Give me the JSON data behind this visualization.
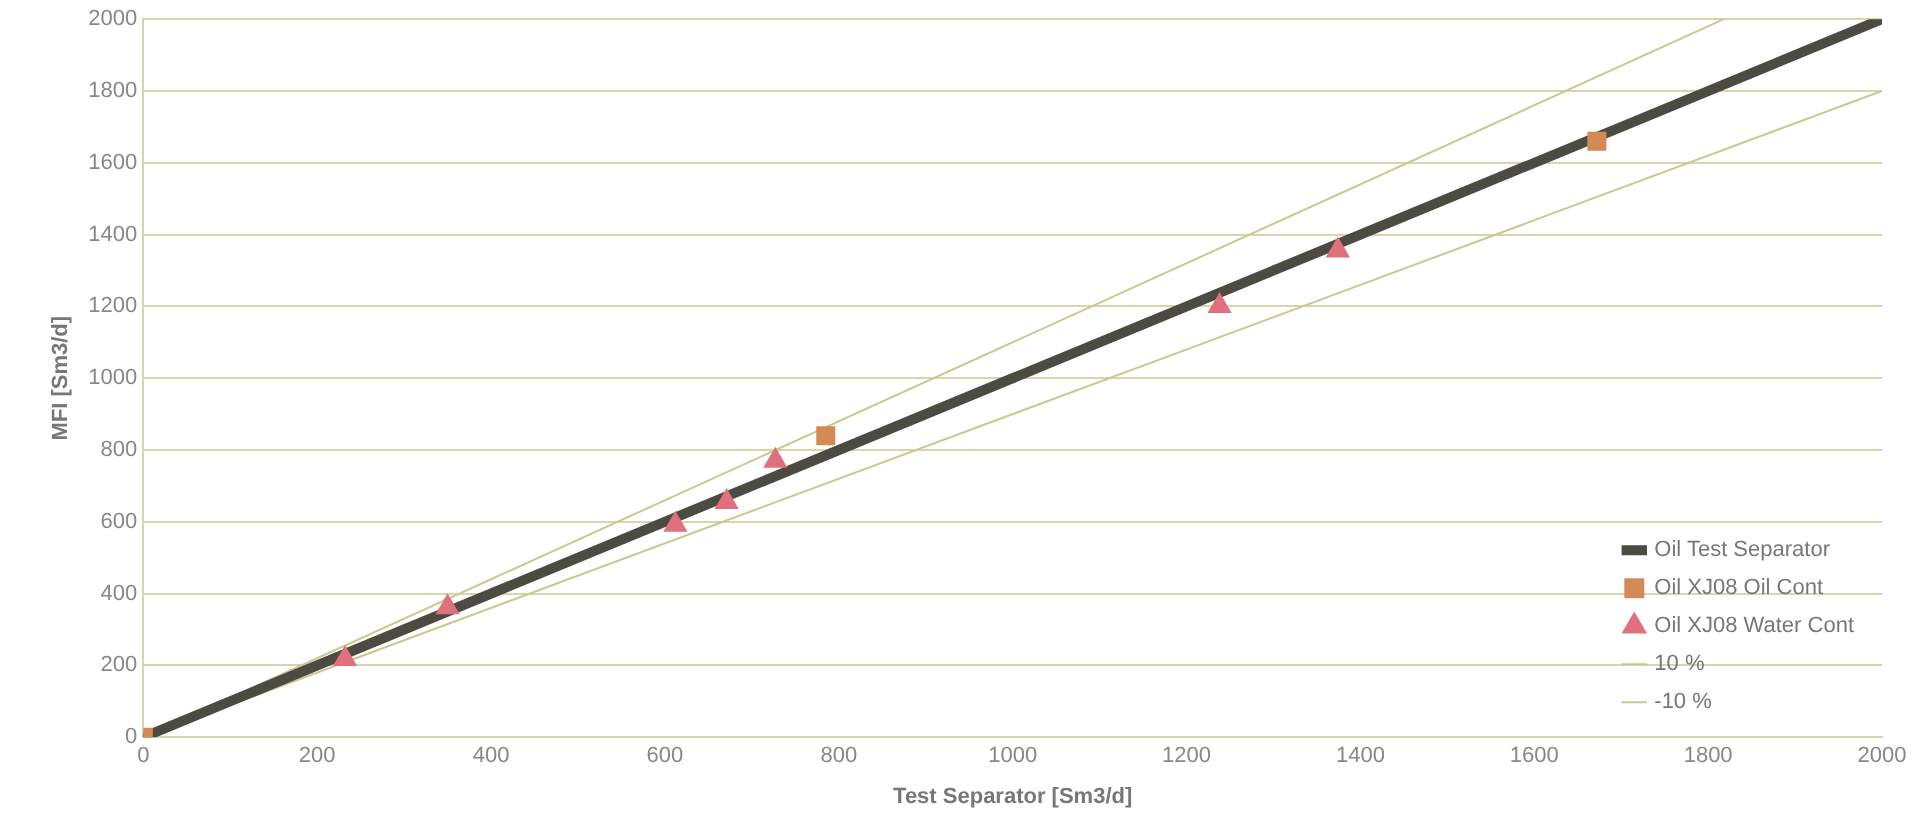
{
  "chart_data": {
    "type": "scatter",
    "xlabel": "Test Separator [Sm3/d]",
    "ylabel": "MFI [Sm3/d]",
    "xlim": [
      0,
      2000
    ],
    "ylim": [
      0,
      2000
    ],
    "xticks": [
      0,
      200,
      400,
      600,
      800,
      1000,
      1200,
      1400,
      1600,
      1800,
      2000
    ],
    "yticks": [
      0,
      200,
      400,
      600,
      800,
      1000,
      1200,
      1400,
      1600,
      1800,
      2000
    ],
    "grid": "y",
    "legend": "bottom right",
    "series": [
      {
        "name": "Oil Test Separator",
        "type": "line",
        "marker": "none",
        "color": "#4b4b42",
        "x": [
          0,
          2000
        ],
        "values": [
          0,
          2000
        ]
      },
      {
        "name": "Oil XJ08 Oil Cont",
        "type": "scatter",
        "marker": "square",
        "color": "#d48a55",
        "x": [
          0,
          785,
          1672
        ],
        "values": [
          0,
          840,
          1660
        ]
      },
      {
        "name": "Oil XJ08 Water Cont",
        "type": "scatter",
        "marker": "triangle",
        "color": "#e0707e",
        "x": [
          232,
          350,
          612,
          671,
          727,
          1238,
          1374
        ],
        "values": [
          218,
          362,
          592,
          655,
          770,
          1201,
          1356
        ]
      },
      {
        "name": "10 %",
        "type": "line",
        "marker": "none",
        "color": "#c9c98f",
        "x": [
          0,
          1818
        ],
        "values": [
          0,
          2000
        ]
      },
      {
        "name": "-10 %",
        "type": "line",
        "marker": "none",
        "color": "#c9c98f",
        "x": [
          0,
          2000
        ],
        "values": [
          0,
          1800
        ]
      }
    ]
  }
}
